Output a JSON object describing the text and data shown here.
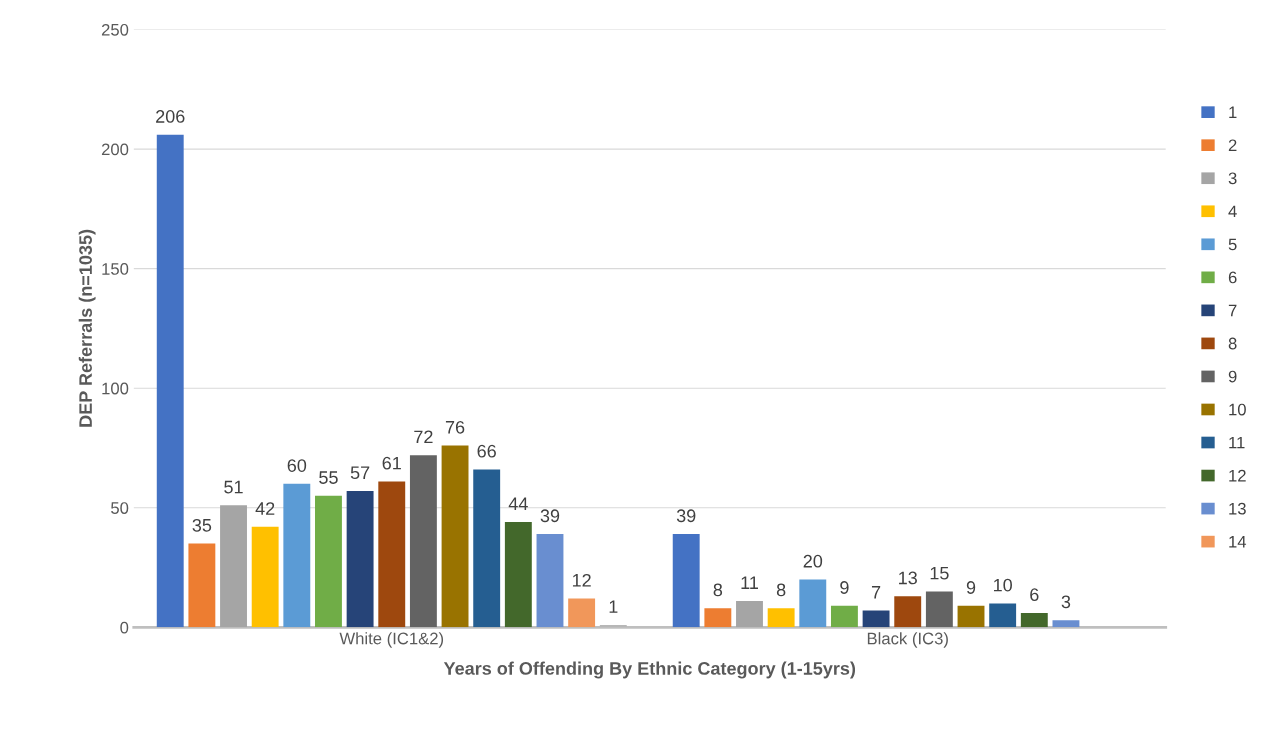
{
  "chart_data": {
    "type": "bar",
    "xlabel": "Years of Offending By Ethnic Category (1-15yrs)",
    "ylabel": "DEP Referrals (n=1035)",
    "categories": [
      "White (IC1&2)",
      "Black (IC3)"
    ],
    "series": [
      {
        "name": "1",
        "color": "#4472c4",
        "values": [
          206,
          39
        ]
      },
      {
        "name": "2",
        "color": "#ed7d31",
        "values": [
          35,
          8
        ]
      },
      {
        "name": "3",
        "color": "#a5a5a5",
        "values": [
          51,
          11
        ]
      },
      {
        "name": "4",
        "color": "#ffc000",
        "values": [
          42,
          8
        ]
      },
      {
        "name": "5",
        "color": "#5b9bd5",
        "values": [
          60,
          20
        ]
      },
      {
        "name": "6",
        "color": "#70ad47",
        "values": [
          55,
          9
        ]
      },
      {
        "name": "7",
        "color": "#264478",
        "values": [
          57,
          7
        ]
      },
      {
        "name": "8",
        "color": "#9e480e",
        "values": [
          61,
          13
        ]
      },
      {
        "name": "9",
        "color": "#636363",
        "values": [
          72,
          15
        ]
      },
      {
        "name": "10",
        "color": "#997300",
        "values": [
          76,
          9
        ]
      },
      {
        "name": "11",
        "color": "#255e91",
        "values": [
          66,
          10
        ]
      },
      {
        "name": "12",
        "color": "#43682b",
        "values": [
          44,
          6
        ]
      },
      {
        "name": "13",
        "color": "#698ed0",
        "values": [
          39,
          3
        ]
      },
      {
        "name": "14",
        "color": "#f1975a",
        "values": [
          12,
          null
        ]
      },
      {
        "color": "#b7b7b7",
        "values": [
          1,
          null
        ]
      }
    ],
    "ylim": [
      0,
      250
    ],
    "yticks": [
      0,
      50,
      100,
      150,
      200,
      250
    ],
    "grid": "y",
    "legend": "right",
    "data_labels": true
  }
}
